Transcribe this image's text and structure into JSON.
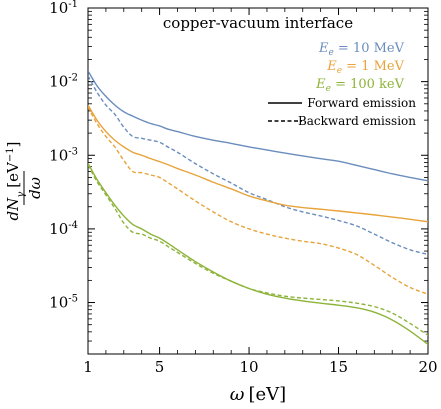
{
  "chart_data": {
    "type": "line",
    "title": "copper-vacuum interface",
    "xlabel": "ω [eV]",
    "ylabel": "dN_γ/dω [eV^-1]",
    "xlim": [
      1,
      20
    ],
    "ylim": [
      2e-06,
      0.1
    ],
    "yscale": "log",
    "x_ticks": [
      1,
      5,
      10,
      15,
      20
    ],
    "y_ticks": [
      {
        "base": "10",
        "exp": "-1",
        "value": 0.1
      },
      {
        "base": "10",
        "exp": "-2",
        "value": 0.01
      },
      {
        "base": "10",
        "exp": "-3",
        "value": 0.001
      },
      {
        "base": "10",
        "exp": "-4",
        "value": 0.0001
      },
      {
        "base": "10",
        "exp": "-5",
        "value": 1e-05
      }
    ],
    "grid": false,
    "legend_position": "top-right",
    "legend": [
      {
        "name": "E_e = 10 MeV",
        "sym": "E",
        "sub": "e",
        "eq": " = 10 MeV",
        "color": "#6a8dbd"
      },
      {
        "name": "E_e = 1 MeV",
        "sym": "E",
        "sub": "e",
        "eq": " = 1 MeV",
        "color": "#e8a33a"
      },
      {
        "name": "E_e = 100 keV",
        "sym": "E",
        "sub": "e",
        "eq": " = 100 keV",
        "color": "#8db43a"
      }
    ],
    "styles": [
      {
        "name": "Forward emission",
        "dash": "solid"
      },
      {
        "name": "Backward emission",
        "dash": "dashed"
      }
    ],
    "x": [
      1,
      1.5,
      2,
      2.5,
      3,
      3.5,
      4,
      4.5,
      5,
      5.5,
      6,
      7,
      8,
      9,
      10,
      11,
      12,
      13,
      14,
      15,
      16,
      17,
      18,
      19,
      20
    ],
    "series": [
      {
        "color": "#6a8dbd",
        "dash": "solid",
        "values": [
          0.014,
          0.0088,
          0.0063,
          0.0048,
          0.0039,
          0.0034,
          0.003,
          0.0027,
          0.0025,
          0.00225,
          0.0021,
          0.0018,
          0.0016,
          0.00145,
          0.0013,
          0.00118,
          0.00107,
          0.00098,
          0.0009,
          0.00083,
          0.00073,
          0.00064,
          0.00056,
          0.0005,
          0.00045
        ]
      },
      {
        "color": "#6a8dbd",
        "dash": "dashed",
        "values": [
          0.012,
          0.0072,
          0.0048,
          0.0036,
          0.0024,
          0.0018,
          0.0017,
          0.0016,
          0.0015,
          0.00128,
          0.0011,
          0.00077,
          0.00056,
          0.00042,
          0.00031,
          0.00025,
          0.0002,
          0.00017,
          0.00015,
          0.00013,
          0.00011,
          8.5e-05,
          6.5e-05,
          5.2e-05,
          4.5e-05
        ]
      },
      {
        "color": "#e8a33a",
        "dash": "solid",
        "values": [
          0.0048,
          0.003,
          0.0021,
          0.0016,
          0.0013,
          0.0011,
          0.001,
          0.0009,
          0.00082,
          0.00074,
          0.00066,
          0.00054,
          0.00043,
          0.00035,
          0.00028,
          0.00024,
          0.00021,
          0.000195,
          0.000185,
          0.000175,
          0.000165,
          0.000155,
          0.000145,
          0.000135,
          0.000125
        ]
      },
      {
        "color": "#e8a33a",
        "dash": "dashed",
        "values": [
          0.0045,
          0.0027,
          0.0018,
          0.0013,
          0.00085,
          0.0006,
          0.00058,
          0.00054,
          0.0005,
          0.00042,
          0.00035,
          0.00024,
          0.00017,
          0.000125,
          0.0001,
          8.5e-05,
          7.5e-05,
          6.8e-05,
          6.3e-05,
          5.5e-05,
          4.5e-05,
          3.2e-05,
          2.2e-05,
          1.6e-05,
          1.3e-05
        ]
      },
      {
        "color": "#8db43a",
        "dash": "solid",
        "values": [
          0.00078,
          0.00047,
          0.00031,
          0.00021,
          0.00015,
          0.000115,
          0.0001,
          8.5e-05,
          7.5e-05,
          6.3e-05,
          5.2e-05,
          3.6e-05,
          2.6e-05,
          1.95e-05,
          1.55e-05,
          1.3e-05,
          1.15e-05,
          1.05e-05,
          9.8e-06,
          9.2e-06,
          8.5e-06,
          7.4e-06,
          5.8e-06,
          4.1e-06,
          2.7e-06
        ]
      },
      {
        "color": "#8db43a",
        "dash": "dashed",
        "values": [
          0.00074,
          0.00044,
          0.00029,
          0.00019,
          0.00012,
          9e-05,
          8.5e-05,
          7.5e-05,
          6.8e-05,
          5.7e-05,
          4.8e-05,
          3.4e-05,
          2.5e-05,
          1.95e-05,
          1.55e-05,
          1.35e-05,
          1.22e-05,
          1.15e-05,
          1.1e-05,
          1.05e-05,
          9.8e-06,
          8.8e-06,
          7.2e-06,
          5.2e-06,
          3.6e-06
        ]
      }
    ]
  }
}
